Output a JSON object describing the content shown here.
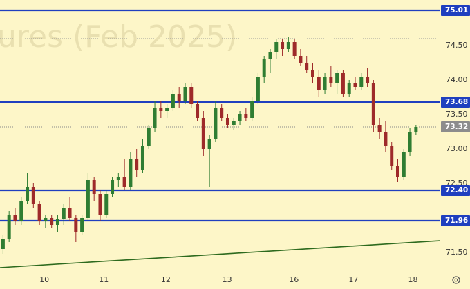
{
  "chart_data": {
    "type": "candlestick",
    "watermark": "ures (Feb 2025)",
    "up_color": "#2f7d32",
    "down_color": "#9e2a2a",
    "background": "#fdf6c8",
    "xlim": [
      -0.5,
      72
    ],
    "ylim": [
      71.21,
      75.16
    ],
    "xticks": [
      {
        "value": 6.8,
        "label": "10"
      },
      {
        "value": 16.6,
        "label": "11"
      },
      {
        "value": 26.8,
        "label": "12"
      },
      {
        "value": 36.9,
        "label": "13"
      },
      {
        "value": 47.9,
        "label": "16"
      },
      {
        "value": 57.7,
        "label": "17"
      },
      {
        "value": 67.5,
        "label": "18"
      }
    ],
    "yticks": [
      {
        "value": 74.5,
        "label": "74.50"
      },
      {
        "value": 74,
        "label": "74.00"
      },
      {
        "value": 73.5,
        "label": "73.50"
      },
      {
        "value": 73,
        "label": "73.00"
      },
      {
        "value": 72.5,
        "label": "72.50"
      },
      {
        "value": 71.5,
        "label": "71.50"
      }
    ],
    "levels": [
      75.01,
      73.68,
      {
        "value": 72.4,
        "label": "72.40"
      },
      71.96
    ],
    "level_color": "#1f3fbf",
    "dotted_levels": [
      74.6
    ],
    "last_price": 73.32,
    "trendline": {
      "x": [
        -0.5,
        72
      ],
      "y": [
        71.28,
        71.67
      ],
      "color": "#2d6a1e"
    },
    "candles": [
      [
        71.55,
        71.75,
        71.48,
        71.7
      ],
      [
        71.7,
        72.1,
        71.65,
        72.05
      ],
      [
        72.05,
        72.15,
        71.9,
        71.95
      ],
      [
        71.95,
        72.3,
        71.9,
        72.25
      ],
      [
        72.25,
        72.65,
        72.2,
        72.45
      ],
      [
        72.45,
        72.5,
        72.15,
        72.2
      ],
      [
        72.2,
        72.25,
        71.9,
        71.95
      ],
      [
        71.95,
        72.05,
        71.85,
        72.0
      ],
      [
        72.0,
        72.05,
        71.85,
        71.9
      ],
      [
        71.9,
        72.05,
        71.8,
        71.98
      ],
      [
        71.98,
        72.2,
        71.9,
        72.15
      ],
      [
        72.15,
        72.3,
        71.95,
        72.0
      ],
      [
        72.0,
        72.05,
        71.65,
        71.8
      ],
      [
        71.8,
        72.05,
        71.75,
        72.0
      ],
      [
        72.0,
        72.65,
        71.95,
        72.55
      ],
      [
        72.55,
        72.6,
        72.25,
        72.35
      ],
      [
        72.35,
        72.4,
        71.95,
        72.05
      ],
      [
        72.05,
        72.4,
        72.0,
        72.35
      ],
      [
        72.35,
        72.6,
        72.3,
        72.55
      ],
      [
        72.55,
        72.65,
        72.45,
        72.6
      ],
      [
        72.6,
        72.85,
        72.4,
        72.45
      ],
      [
        72.45,
        72.95,
        72.4,
        72.85
      ],
      [
        72.85,
        73.0,
        72.6,
        72.7
      ],
      [
        72.7,
        73.15,
        72.65,
        73.05
      ],
      [
        73.05,
        73.35,
        73.0,
        73.3
      ],
      [
        73.3,
        73.7,
        73.25,
        73.6
      ],
      [
        73.6,
        73.7,
        73.45,
        73.55
      ],
      [
        73.55,
        73.65,
        73.45,
        73.6
      ],
      [
        73.6,
        73.85,
        73.55,
        73.8
      ],
      [
        73.8,
        73.9,
        73.6,
        73.7
      ],
      [
        73.7,
        73.95,
        73.65,
        73.9
      ],
      [
        73.9,
        73.95,
        73.6,
        73.65
      ],
      [
        73.65,
        73.7,
        73.4,
        73.45
      ],
      [
        73.45,
        73.55,
        72.9,
        73.0
      ],
      [
        73.0,
        73.2,
        72.45,
        73.15
      ],
      [
        73.15,
        73.7,
        73.1,
        73.6
      ],
      [
        73.6,
        73.65,
        73.4,
        73.45
      ],
      [
        73.45,
        73.5,
        73.3,
        73.35
      ],
      [
        73.35,
        73.45,
        73.28,
        73.4
      ],
      [
        73.4,
        73.55,
        73.35,
        73.5
      ],
      [
        73.5,
        73.6,
        73.4,
        73.45
      ],
      [
        73.45,
        73.75,
        73.4,
        73.7
      ],
      [
        73.7,
        74.1,
        73.65,
        74.05
      ],
      [
        74.05,
        74.35,
        73.95,
        74.3
      ],
      [
        74.3,
        74.45,
        74.1,
        74.4
      ],
      [
        74.4,
        74.6,
        74.3,
        74.55
      ],
      [
        74.55,
        74.6,
        74.35,
        74.45
      ],
      [
        74.45,
        74.62,
        74.4,
        74.55
      ],
      [
        74.55,
        74.6,
        74.3,
        74.35
      ],
      [
        74.35,
        74.45,
        74.2,
        74.25
      ],
      [
        74.25,
        74.35,
        74.1,
        74.15
      ],
      [
        74.15,
        74.25,
        73.95,
        74.05
      ],
      [
        74.05,
        74.15,
        73.75,
        73.85
      ],
      [
        73.85,
        74.1,
        73.8,
        74.05
      ],
      [
        74.05,
        74.2,
        73.9,
        73.95
      ],
      [
        73.95,
        74.15,
        73.8,
        74.1
      ],
      [
        74.1,
        74.15,
        73.75,
        73.8
      ],
      [
        73.8,
        74.0,
        73.75,
        73.95
      ],
      [
        73.95,
        74.05,
        73.85,
        73.9
      ],
      [
        73.9,
        74.1,
        73.85,
        74.05
      ],
      [
        74.05,
        74.18,
        73.9,
        73.95
      ],
      [
        73.95,
        74.0,
        73.25,
        73.35
      ],
      [
        73.35,
        73.45,
        73.15,
        73.25
      ],
      [
        73.25,
        73.4,
        72.95,
        73.05
      ],
      [
        73.05,
        73.1,
        72.7,
        72.75
      ],
      [
        72.75,
        72.85,
        72.52,
        72.6
      ],
      [
        72.6,
        73.0,
        72.55,
        72.95
      ],
      [
        72.95,
        73.3,
        72.9,
        73.25
      ],
      [
        73.25,
        73.35,
        73.2,
        73.32
      ]
    ]
  }
}
